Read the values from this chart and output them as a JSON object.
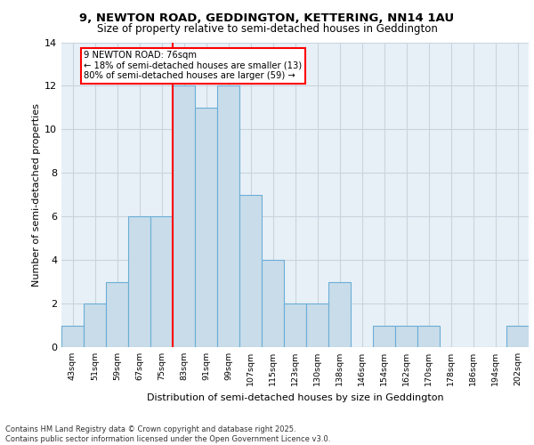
{
  "title1": "9, NEWTON ROAD, GEDDINGTON, KETTERING, NN14 1AU",
  "title2": "Size of property relative to semi-detached houses in Geddington",
  "xlabel": "Distribution of semi-detached houses by size in Geddington",
  "ylabel": "Number of semi-detached properties",
  "bin_labels": [
    "43sqm",
    "51sqm",
    "59sqm",
    "67sqm",
    "75sqm",
    "83sqm",
    "91sqm",
    "99sqm",
    "107sqm",
    "115sqm",
    "123sqm",
    "130sqm",
    "138sqm",
    "146sqm",
    "154sqm",
    "162sqm",
    "170sqm",
    "178sqm",
    "186sqm",
    "194sqm",
    "202sqm"
  ],
  "bar_heights": [
    1,
    2,
    3,
    6,
    6,
    12,
    11,
    12,
    7,
    4,
    2,
    2,
    3,
    0,
    1,
    1,
    1,
    0,
    0,
    0,
    1
  ],
  "bar_color": "#c9dcea",
  "bar_edge_color": "#6aaed6",
  "red_line_bin_index": 5,
  "annotation_text": "9 NEWTON ROAD: 76sqm\n← 18% of semi-detached houses are smaller (13)\n80% of semi-detached houses are larger (59) →",
  "annotation_box_color": "white",
  "annotation_box_edge_color": "red",
  "grid_color": "#c8d4de",
  "background_color": "#e8f0f7",
  "footer_text": "Contains HM Land Registry data © Crown copyright and database right 2025.\nContains public sector information licensed under the Open Government Licence v3.0.",
  "ylim": [
    0,
    14
  ],
  "yticks": [
    0,
    2,
    4,
    6,
    8,
    10,
    12,
    14
  ]
}
